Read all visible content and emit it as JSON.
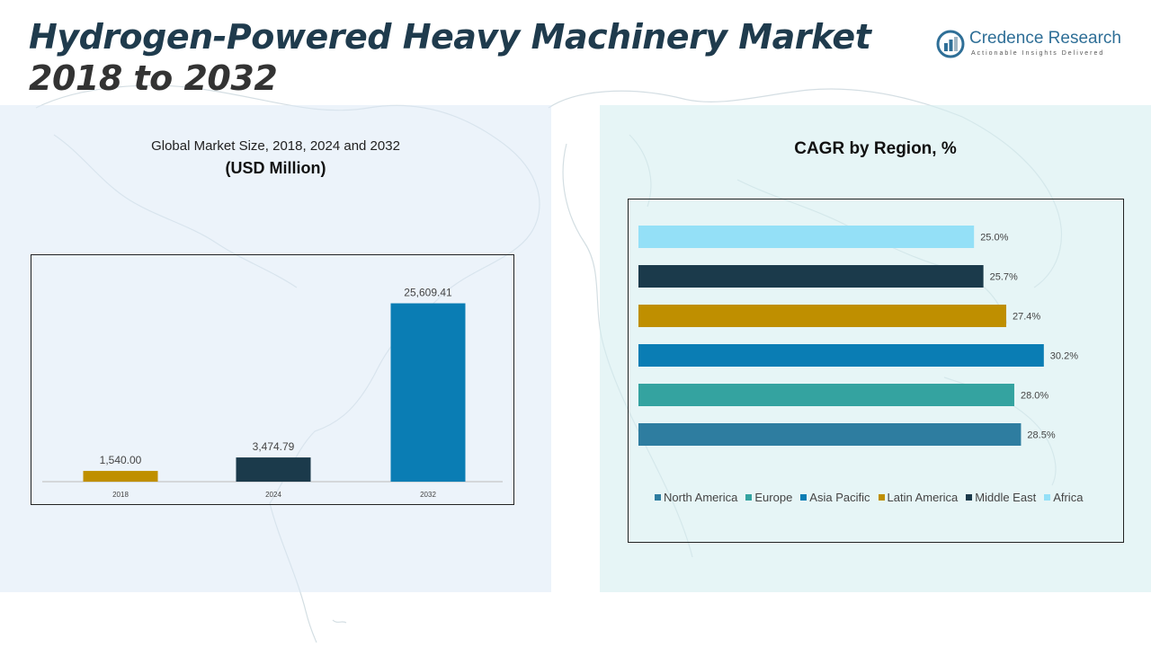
{
  "header": {
    "title_line1": "Hydrogen-Powered Heavy Machinery Market",
    "title_line2": "2018 to 2032"
  },
  "logo": {
    "name": "Credence Research",
    "tagline": "Actionable Insights Delivered",
    "color": "#2f6f97"
  },
  "left_panel": {
    "title": "Global Market Size, 2018, 2024 and 2032",
    "subtitle": "(USD Million)"
  },
  "right_panel": {
    "title": "CAGR by Region, %"
  },
  "chart_data": [
    {
      "type": "bar",
      "orientation": "vertical",
      "title": "Global Market Size, 2018, 2024 and 2032",
      "ylabel": "(USD Million)",
      "categories": [
        "2018",
        "2024",
        "2032"
      ],
      "values": [
        1540.0,
        3474.79,
        25609.41
      ],
      "value_labels": [
        "1,540.00",
        "3,474.79",
        "25,609.41"
      ],
      "colors": [
        "#bf8f00",
        "#1b3a4b",
        "#0a7db4"
      ],
      "ylim": [
        0,
        28000
      ],
      "grid": false,
      "legend": "none"
    },
    {
      "type": "bar",
      "orientation": "horizontal",
      "title": "CAGR by Region, %",
      "categories": [
        "North America",
        "Europe",
        "Asia Pacific",
        "Latin America",
        "Middle East",
        "Africa"
      ],
      "values": [
        28.5,
        28.0,
        30.2,
        27.4,
        25.7,
        25.0
      ],
      "value_labels": [
        "28.5%",
        "28.0%",
        "30.2%",
        "27.4%",
        "25.7%",
        "25.0%"
      ],
      "colors": [
        "#2e7da0",
        "#34a3a0",
        "#0a7db4",
        "#bf8f00",
        "#1b3a4b",
        "#94e0f7"
      ],
      "xlim": [
        0,
        34.5
      ],
      "grid": false,
      "legend": "bottom"
    }
  ]
}
